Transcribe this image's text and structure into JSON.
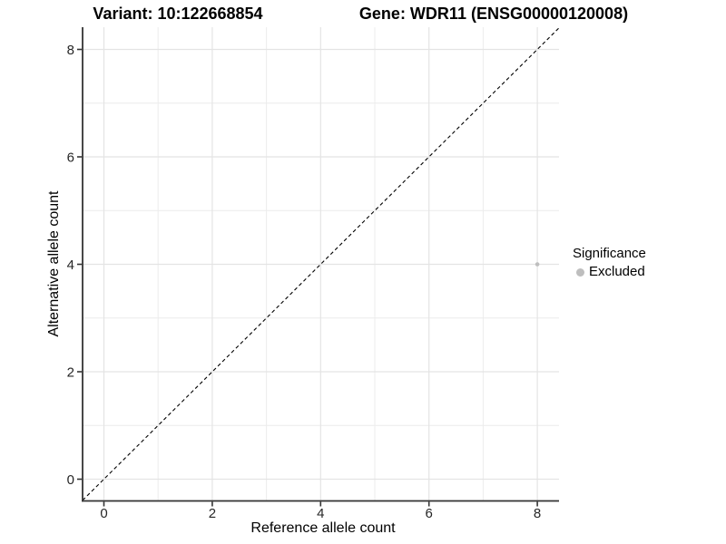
{
  "header": {
    "variant_title": "Variant: 10:122668854",
    "gene_title": "Gene: WDR11 (ENSG00000120008)"
  },
  "chart_data": {
    "type": "scatter",
    "title": "Variant: 10:122668854   Gene: WDR11 (ENSG00000120008)",
    "xlabel": "Reference allele count",
    "ylabel": "Alternative allele count",
    "xlim": [
      -0.4,
      8.4
    ],
    "ylim": [
      -0.4,
      8.4
    ],
    "x_major_ticks": [
      0,
      2,
      4,
      6,
      8
    ],
    "x_minor_ticks": [
      1,
      3,
      5,
      7
    ],
    "y_major_ticks": [
      0,
      2,
      4,
      6,
      8
    ],
    "y_minor_ticks": [
      1,
      3,
      5,
      7
    ],
    "grid": true,
    "reference_line": {
      "type": "identity",
      "slope": 1,
      "intercept": 0,
      "style": "dashed",
      "color": "#000000"
    },
    "series": [
      {
        "name": "Excluded",
        "color": "#bebebe",
        "points": [
          {
            "x": 8,
            "y": 4
          }
        ]
      }
    ],
    "legend": {
      "title": "Significance",
      "position": "right",
      "items": [
        {
          "label": "Excluded",
          "color": "#bebebe"
        }
      ]
    },
    "colors": {
      "grid_major": "#e4e4e4",
      "grid_minor": "#ececec",
      "axis_line": "#333333",
      "tick_text": "#262626",
      "background": "#ffffff"
    }
  }
}
